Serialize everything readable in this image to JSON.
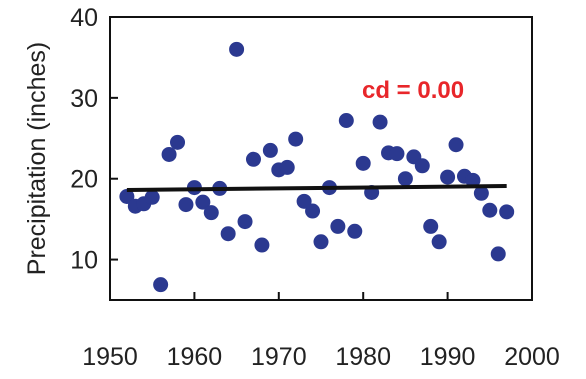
{
  "colors": {
    "point": "#2B3990",
    "trend": "#111111",
    "annotation": "#E8262A",
    "frame": "#111111"
  },
  "chart_data": {
    "type": "scatter",
    "ylabel": "Precipitation (inches)",
    "xlim": [
      1950,
      2000
    ],
    "ylim": [
      5,
      40
    ],
    "x_ticks": [
      1950,
      1960,
      1970,
      1980,
      1990,
      2000
    ],
    "y_ticks": [
      10,
      20,
      30,
      40
    ],
    "annotation": "cd = 0.00",
    "grid": false,
    "legend": "none",
    "trend_line": {
      "x": [
        1952,
        1997
      ],
      "y": [
        18.6,
        19.1
      ]
    },
    "series": [
      {
        "points": [
          [
            1952,
            17.8
          ],
          [
            1953,
            16.6
          ],
          [
            1954,
            16.9
          ],
          [
            1955,
            17.7
          ],
          [
            1956,
            6.9
          ],
          [
            1957,
            23.0
          ],
          [
            1958,
            24.5
          ],
          [
            1959,
            16.8
          ],
          [
            1960,
            18.9
          ],
          [
            1961,
            17.1
          ],
          [
            1962,
            15.8
          ],
          [
            1963,
            18.8
          ],
          [
            1964,
            13.2
          ],
          [
            1965,
            36.0
          ],
          [
            1966,
            14.7
          ],
          [
            1967,
            22.4
          ],
          [
            1968,
            11.8
          ],
          [
            1969,
            23.5
          ],
          [
            1970,
            21.1
          ],
          [
            1971,
            21.4
          ],
          [
            1972,
            24.9
          ],
          [
            1973,
            17.2
          ],
          [
            1974,
            16.0
          ],
          [
            1975,
            12.2
          ],
          [
            1976,
            18.9
          ],
          [
            1977,
            14.1
          ],
          [
            1978,
            27.2
          ],
          [
            1979,
            13.5
          ],
          [
            1980,
            21.9
          ],
          [
            1981,
            18.3
          ],
          [
            1982,
            27.0
          ],
          [
            1983,
            23.2
          ],
          [
            1984,
            23.1
          ],
          [
            1985,
            20.0
          ],
          [
            1986,
            22.7
          ],
          [
            1987,
            21.6
          ],
          [
            1988,
            14.1
          ],
          [
            1989,
            12.2
          ],
          [
            1990,
            20.2
          ],
          [
            1991,
            24.2
          ],
          [
            1992,
            20.3
          ],
          [
            1993,
            19.8
          ],
          [
            1994,
            18.2
          ],
          [
            1995,
            16.1
          ],
          [
            1996,
            10.7
          ],
          [
            1997,
            15.9
          ]
        ]
      }
    ]
  }
}
